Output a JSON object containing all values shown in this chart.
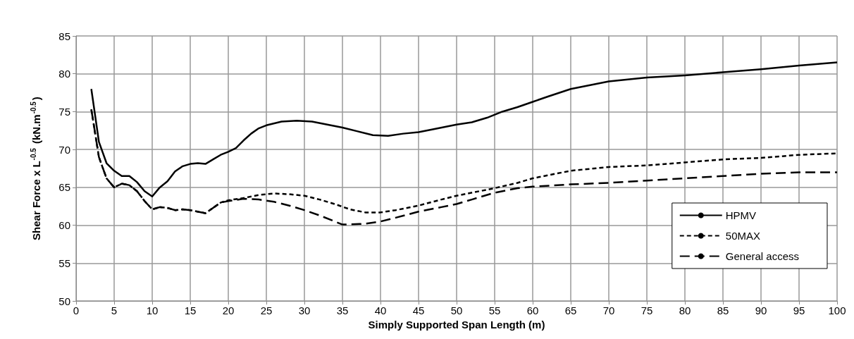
{
  "chart_data": {
    "type": "line",
    "xlabel": "Simply Supported Span Length (m)",
    "ylabel": "Shear Force x L$^{-0.5}$ (kN.m$^{-0.5}$)",
    "xlim": [
      0,
      100
    ],
    "xticks": [
      0,
      5,
      10,
      15,
      20,
      25,
      30,
      35,
      40,
      45,
      50,
      55,
      60,
      65,
      70,
      75,
      80,
      85,
      90,
      95,
      100
    ],
    "ylim": [
      50,
      85
    ],
    "yticks": [
      50,
      55,
      60,
      65,
      70,
      75,
      80,
      85
    ],
    "grid": true,
    "legend": "bottom right",
    "marker": "none",
    "series": [
      {
        "name": "HPMV",
        "color": "#000000",
        "line_style": "solid",
        "x": [
          2,
          3,
          4,
          5,
          6,
          7,
          8,
          9,
          10,
          11,
          12,
          13,
          14,
          15,
          16,
          17,
          18,
          19,
          20,
          21,
          22,
          23,
          24,
          25,
          27,
          29,
          31,
          33,
          35,
          37,
          39,
          41,
          43,
          45,
          47,
          50,
          52,
          54,
          56,
          58,
          60,
          62,
          65,
          70,
          75,
          80,
          85,
          90,
          95,
          100
        ],
        "values": [
          78,
          71,
          68.2,
          67.2,
          66.5,
          66.5,
          65.7,
          64.5,
          63.8,
          65,
          65.8,
          67.1,
          67.8,
          68.1,
          68.2,
          68.1,
          68.7,
          69.3,
          69.7,
          70.2,
          71.2,
          72.1,
          72.8,
          73.2,
          73.7,
          73.8,
          73.7,
          73.3,
          72.9,
          72.4,
          71.9,
          71.8,
          72.1,
          72.3,
          72.7,
          73.3,
          73.6,
          74.2,
          75,
          75.6,
          76.3,
          77,
          78,
          79,
          79.5,
          79.8,
          80.2,
          80.6,
          81.1,
          81.5
        ]
      },
      {
        "name": "50MAX",
        "color": "#000000",
        "line_style": "dotted",
        "x": [
          2,
          3,
          4,
          5,
          6,
          7,
          8,
          9,
          10,
          11,
          12,
          13,
          14,
          15,
          17,
          18,
          19,
          20,
          22,
          24,
          26,
          28,
          30,
          32,
          34,
          36,
          38,
          40,
          42,
          45,
          48,
          50,
          55,
          58,
          60,
          65,
          70,
          75,
          80,
          85,
          90,
          95,
          100
        ],
        "values": [
          75.3,
          69,
          66.2,
          65,
          65.5,
          65.3,
          64.5,
          63.2,
          62.1,
          62.4,
          62.3,
          62,
          62.1,
          62,
          61.6,
          62.3,
          63,
          63.3,
          63.6,
          64,
          64.2,
          64.1,
          63.9,
          63.4,
          62.8,
          62.1,
          61.7,
          61.7,
          62,
          62.6,
          63.4,
          63.9,
          64.9,
          65.6,
          66.2,
          67.2,
          67.7,
          67.9,
          68.3,
          68.7,
          68.9,
          69.3,
          69.5
        ]
      },
      {
        "name": "General access",
        "color": "#000000",
        "line_style": "dashed",
        "x": [
          2,
          3,
          4,
          5,
          6,
          7,
          8,
          9,
          10,
          11,
          12,
          13,
          14,
          15,
          17,
          18,
          19,
          20,
          22,
          24,
          26,
          28,
          30,
          32,
          34,
          35,
          38,
          40,
          42,
          45,
          48,
          50,
          52,
          55,
          58,
          60,
          65,
          70,
          75,
          80,
          85,
          90,
          95,
          100
        ],
        "values": [
          75.3,
          69,
          66.2,
          65,
          65.5,
          65.3,
          64.5,
          63.2,
          62.1,
          62.4,
          62.3,
          62,
          62.1,
          62,
          61.6,
          62.3,
          63,
          63.2,
          63.5,
          63.4,
          63.1,
          62.6,
          62,
          61.3,
          60.5,
          60.1,
          60.2,
          60.5,
          61,
          61.8,
          62.4,
          62.8,
          63.4,
          64.3,
          64.9,
          65.1,
          65.4,
          65.6,
          65.9,
          66.2,
          66.5,
          66.8,
          67,
          67
        ]
      }
    ]
  }
}
